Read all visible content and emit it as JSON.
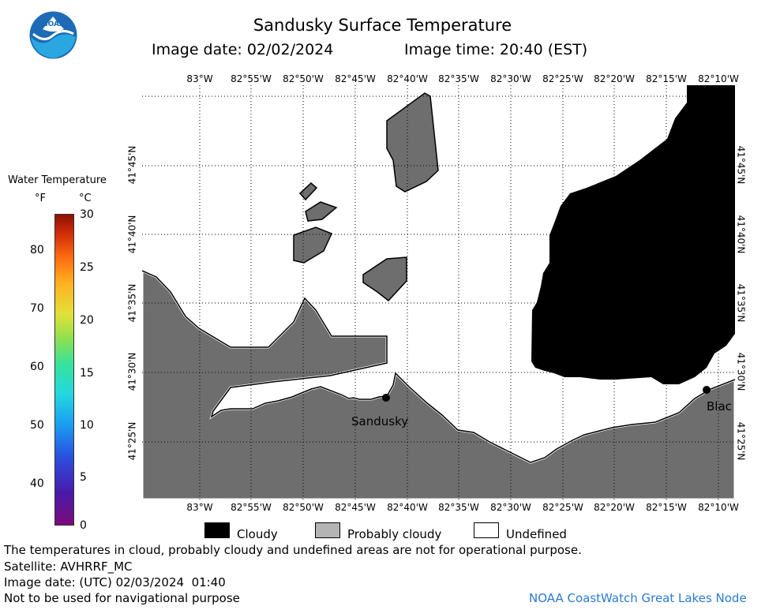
{
  "title": "Sandusky Surface Temperature",
  "image_date_line": "Image date: 02/02/2024",
  "image_time_line": "Image time: 20:40 (EST)",
  "logo_text": "NOAA",
  "scale": {
    "title": "Water Temperature",
    "unit_f": "°F",
    "unit_c": "°C",
    "f_ticks": [
      "80",
      "70",
      "60",
      "50",
      "40"
    ],
    "c_ticks": [
      "30",
      "25",
      "20",
      "15",
      "10",
      "5",
      "0"
    ]
  },
  "longitude_labels": [
    "83°W",
    "82°55'W",
    "82°50'W",
    "82°45'W",
    "82°40'W",
    "82°35'W",
    "82°30'W",
    "82°25'W",
    "82°20'W",
    "82°15'W",
    "82°10'W"
  ],
  "latitude_labels": [
    "41°45'N",
    "41°40'N",
    "41°35'N",
    "41°30'N",
    "41°25'N"
  ],
  "place_labels": {
    "sandusky": "Sandusky",
    "blac": "Blac"
  },
  "legend": {
    "cloudy": "Cloudy",
    "probably_cloudy": "Probably cloudy",
    "undefined": "Undefined"
  },
  "footer": {
    "disclaimer": "The temperatures in cloud, probably cloudy and undefined areas are not for operational purpose.",
    "satellite": "Satellite: AVHRRF_MC",
    "utc_date": "Image date: (UTC) 02/03/2024  01:40",
    "nav_warning": "Not to be used for navigational purpose",
    "credit": "NOAA CoastWatch Great Lakes Node"
  },
  "colors": {
    "land": "#6e6e6e",
    "cloud": "#000000",
    "probably_cloudy": "#b4b4b4",
    "undefined": "#ffffff",
    "credit": "#2a7bd3"
  }
}
